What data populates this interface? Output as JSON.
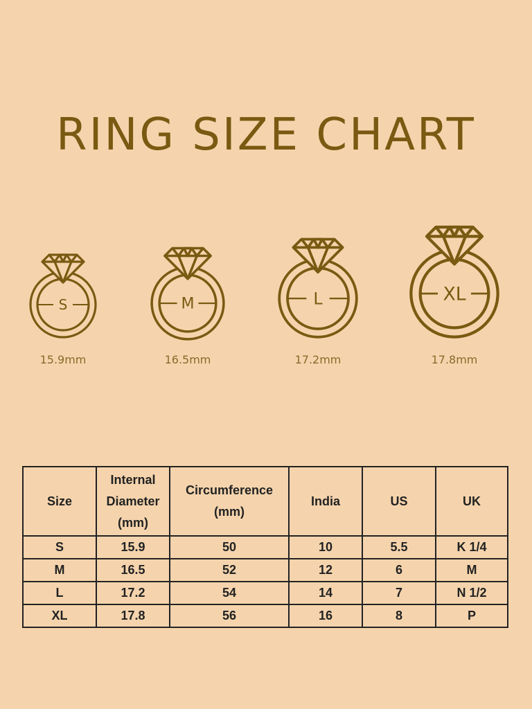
{
  "title": "RING SIZE CHART",
  "colors": {
    "background": "#f5d4ad",
    "accent": "#7a5a12",
    "table_text": "#222222"
  },
  "rings": [
    {
      "size": "S",
      "diameter_label": "15.9mm",
      "diameter_mm": 15.9
    },
    {
      "size": "M",
      "diameter_label": "16.5mm",
      "diameter_mm": 16.5
    },
    {
      "size": "L",
      "diameter_label": "17.2mm",
      "diameter_mm": 17.2
    },
    {
      "size": "XL",
      "diameter_label": "17.8mm",
      "diameter_mm": 17.8
    }
  ],
  "table": {
    "headers": [
      "Size",
      "Internal Diameter (mm)",
      "Circumference (mm)",
      "India",
      "US",
      "UK"
    ],
    "rows": [
      [
        "S",
        "15.9",
        "50",
        "10",
        "5.5",
        "K 1/4"
      ],
      [
        "M",
        "16.5",
        "52",
        "12",
        "6",
        "M"
      ],
      [
        "L",
        "17.2",
        "54",
        "14",
        "7",
        "N 1/2"
      ],
      [
        "XL",
        "17.8",
        "56",
        "16",
        "8",
        "P"
      ]
    ]
  }
}
